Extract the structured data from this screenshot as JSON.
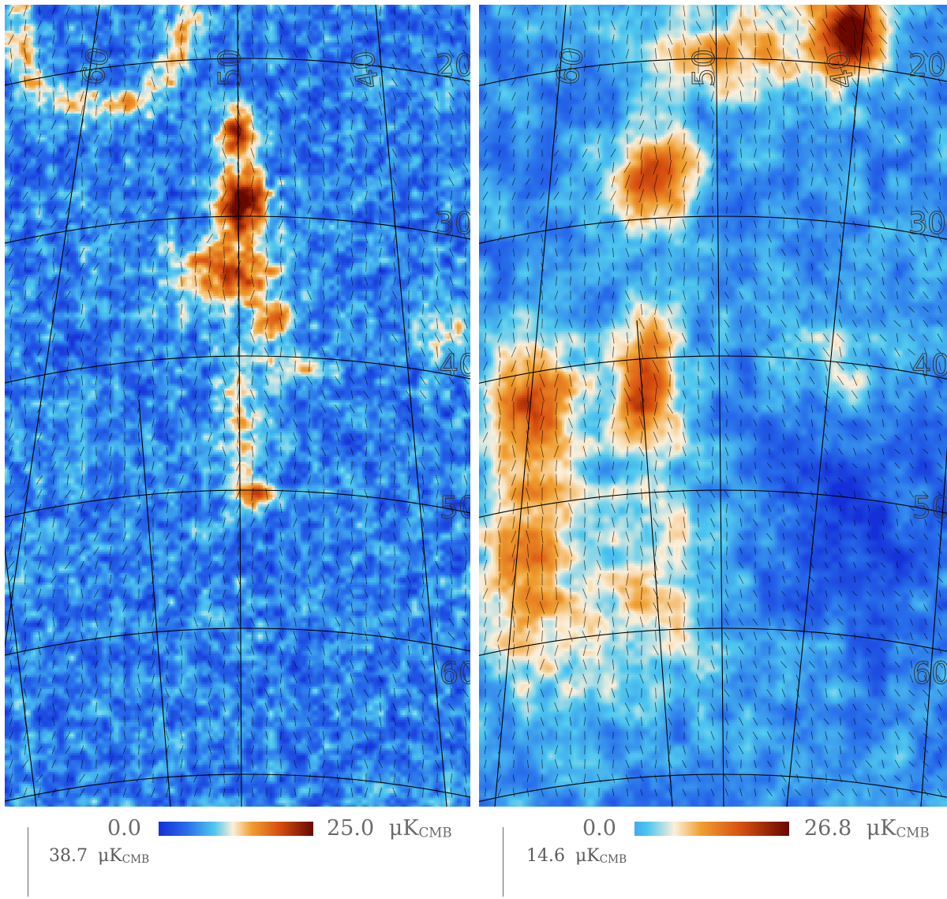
{
  "panels": [
    {
      "id": "left",
      "colormap": "planck_blue_orange",
      "colorbar": {
        "min": "0.0",
        "max": "25.0",
        "unit": "μK",
        "unit_sub": "CMB"
      },
      "vector_scale": {
        "value": "38.7",
        "unit": "μK",
        "unit_sub": "CMB"
      },
      "grid_labels": [
        "60",
        "50",
        "40",
        "20",
        "30",
        "40",
        "50",
        "60"
      ]
    },
    {
      "id": "right",
      "colormap": "planck_blue_orange",
      "colorbar": {
        "min": "0.0",
        "max": "26.8",
        "unit": "μK",
        "unit_sub": "CMB"
      },
      "vector_scale": {
        "value": "14.6",
        "unit": "μK",
        "unit_sub": "CMB"
      },
      "grid_labels": [
        "60",
        "50",
        "40",
        "20",
        "30",
        "40",
        "50",
        "60"
      ]
    }
  ],
  "colors": {
    "deep_blue": "#1530d8",
    "light_blue": "#4fc8ef",
    "neutral": "#fbf0dc",
    "orange": "#f0a030",
    "red_orange": "#d85010",
    "dark_red": "#6a0800",
    "grid_line": "#000000"
  }
}
